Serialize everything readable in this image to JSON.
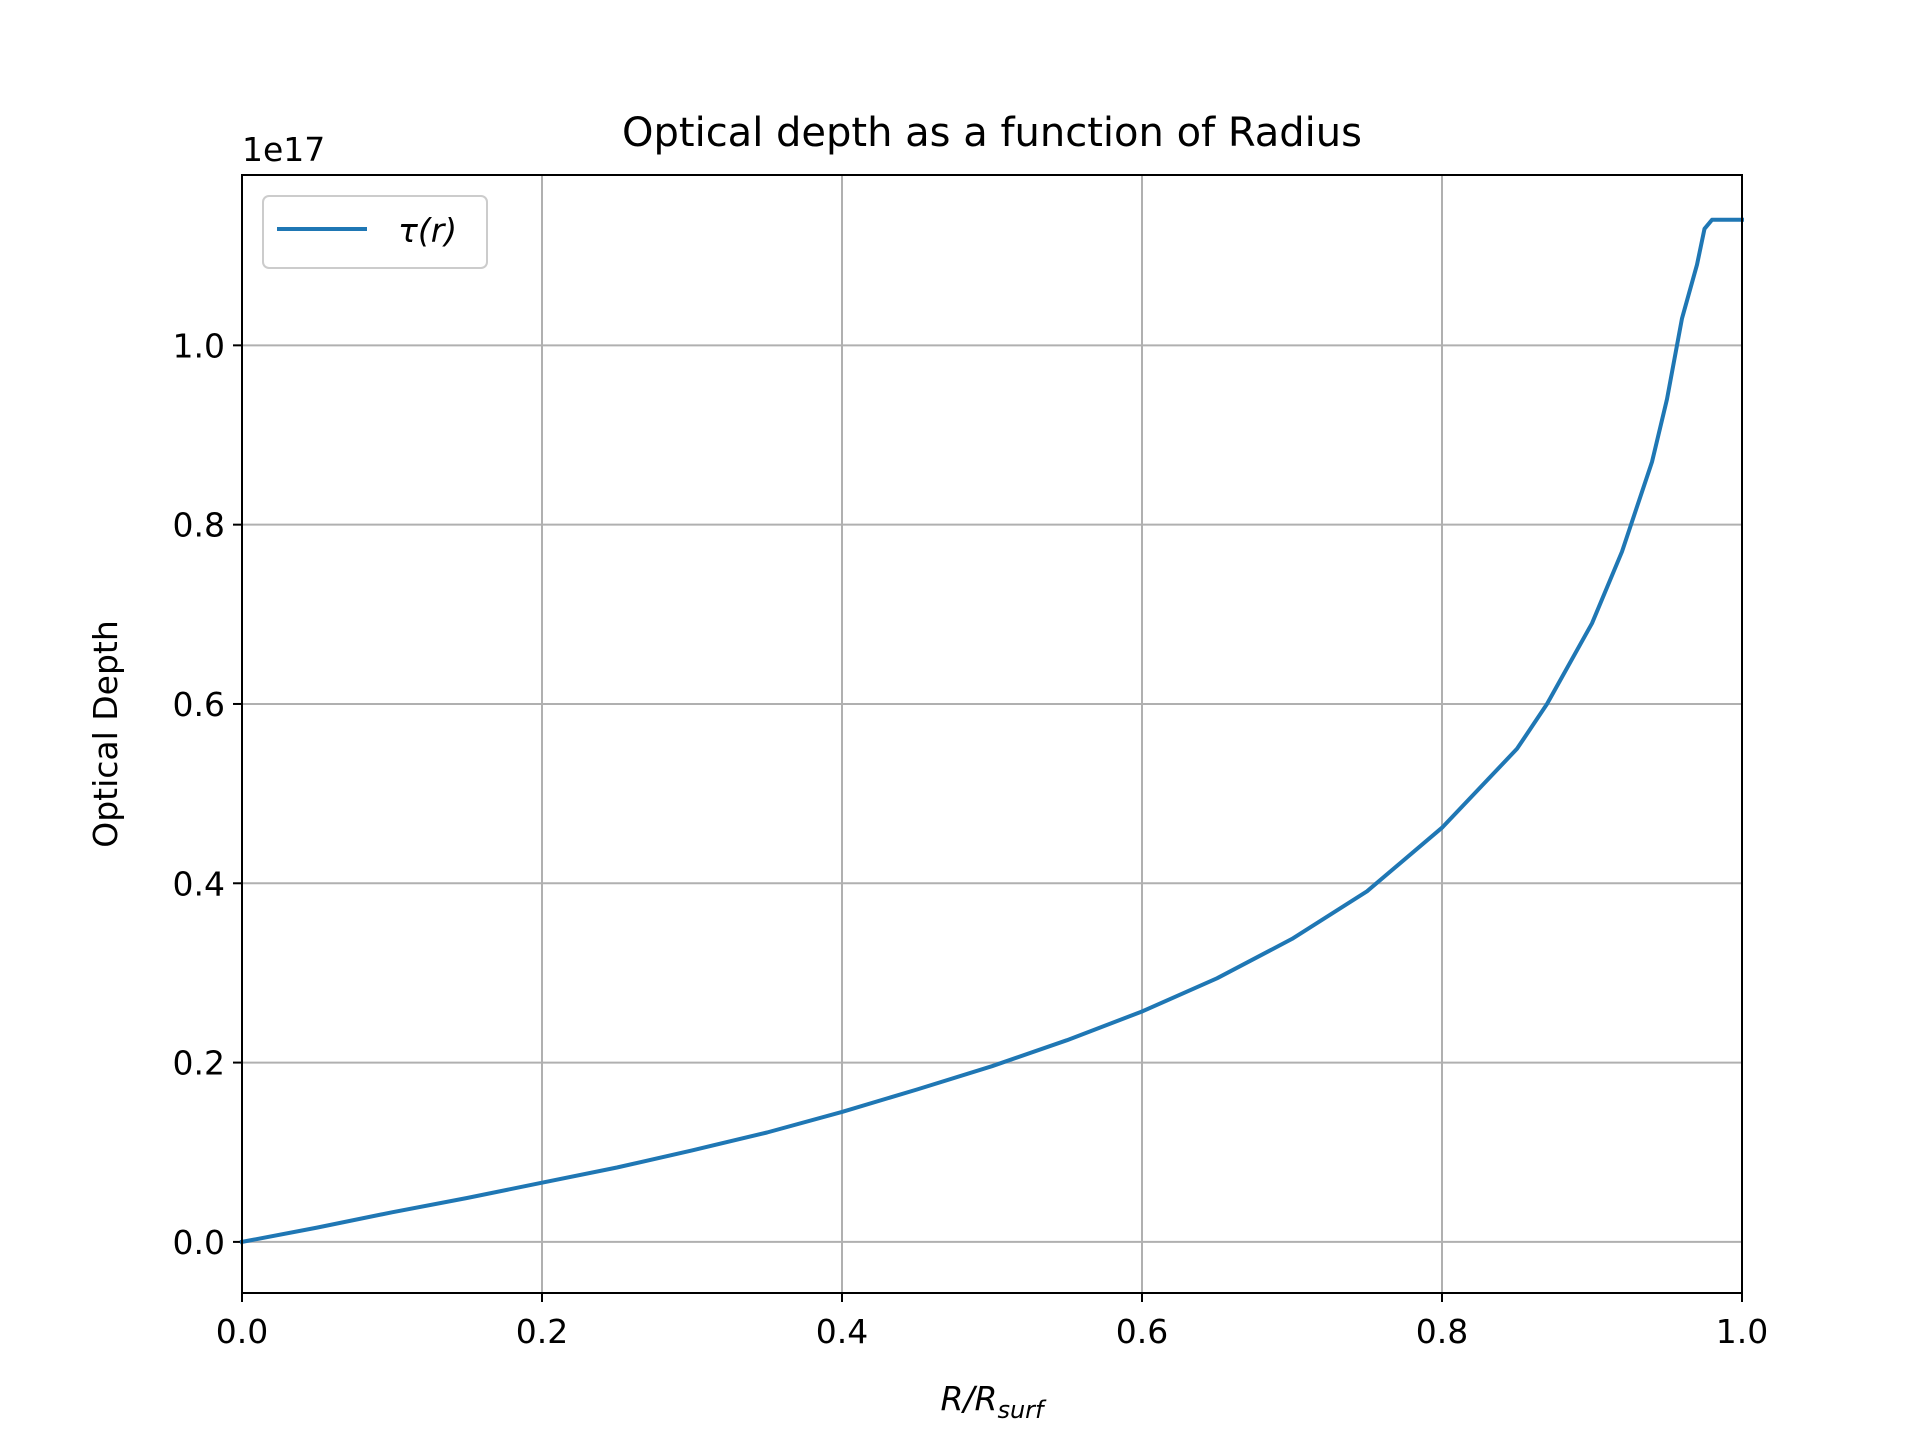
{
  "chart_data": {
    "type": "line",
    "title": "Optical depth as a function of Radius",
    "xlabel": {
      "main": "R/R",
      "sub": "surf"
    },
    "ylabel": "Optical Depth",
    "y_offset_text": "1e17",
    "xlim": [
      0.0,
      1.0
    ],
    "ylim": [
      -0.057,
      1.19
    ],
    "y_scale_factor": 1e+17,
    "grid": true,
    "legend_position": "upper-left",
    "x_ticks": [
      0.0,
      0.2,
      0.4,
      0.6,
      0.8,
      1.0
    ],
    "x_tick_labels": [
      "0.0",
      "0.2",
      "0.4",
      "0.6",
      "0.8",
      "1.0"
    ],
    "y_ticks": [
      0.0,
      0.2,
      0.4,
      0.6,
      0.8,
      1.0
    ],
    "y_tick_labels": [
      "0.0",
      "0.2",
      "0.4",
      "0.6",
      "0.8",
      "1.0"
    ],
    "series": [
      {
        "name": "τ(r)",
        "color": "#1f77b4",
        "x": [
          0.0,
          0.05,
          0.1,
          0.15,
          0.2,
          0.25,
          0.3,
          0.35,
          0.4,
          0.45,
          0.5,
          0.55,
          0.6,
          0.65,
          0.7,
          0.75,
          0.8,
          0.85,
          0.87,
          0.9,
          0.92,
          0.94,
          0.95,
          0.96,
          0.97,
          0.975,
          0.98,
          0.985,
          0.99,
          1.0
        ],
        "y": [
          0.0,
          0.016,
          0.033,
          0.049,
          0.066,
          0.083,
          0.102,
          0.122,
          0.145,
          0.17,
          0.196,
          0.225,
          0.257,
          0.294,
          0.338,
          0.391,
          0.462,
          0.55,
          0.6,
          0.69,
          0.77,
          0.87,
          0.94,
          1.03,
          1.09,
          1.13,
          1.14,
          1.14,
          1.14,
          1.14
        ]
      }
    ]
  }
}
